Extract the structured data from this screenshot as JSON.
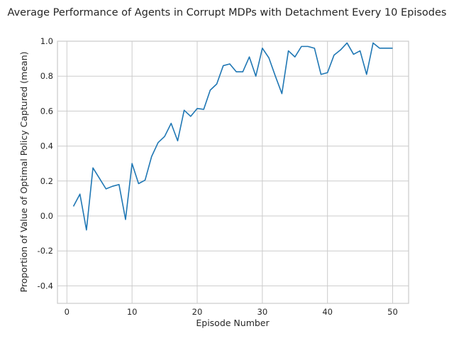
{
  "chart_data": {
    "type": "line",
    "title": "Average Performance of Agents in Corrupt MDPs with Detachment Every 10 Episodes",
    "xlabel": "Episode Number",
    "ylabel": "Proportion of Value of Optimal Policy Captured (mean)",
    "xlim": [
      -1.45,
      52.45
    ],
    "ylim": [
      -0.5,
      1.0
    ],
    "xticks": [
      0,
      10,
      20,
      30,
      40,
      50
    ],
    "xtick_labels": [
      "0",
      "10",
      "20",
      "30",
      "40",
      "50"
    ],
    "yticks": [
      -0.4,
      -0.2,
      0.0,
      0.2,
      0.4,
      0.6,
      0.8,
      1.0
    ],
    "ytick_labels": [
      "-0.4",
      "-0.2",
      "0.0",
      "0.2",
      "0.4",
      "0.6",
      "0.8",
      "1.0"
    ],
    "grid": true,
    "line_color": "#1f77b4",
    "series": [
      {
        "x": [
          1,
          2,
          3,
          4,
          5,
          6,
          7,
          8,
          9,
          10,
          11,
          12,
          13,
          14,
          15,
          16,
          17,
          18,
          19,
          20,
          21,
          22,
          23,
          24,
          25,
          26,
          27,
          28,
          29,
          30,
          31,
          32,
          33,
          34,
          35,
          36,
          37,
          38,
          39,
          40,
          41,
          42,
          43,
          44,
          45,
          46,
          47,
          48,
          49,
          50
        ],
        "values": [
          0.055,
          0.125,
          -0.08,
          0.275,
          0.215,
          0.155,
          0.17,
          0.18,
          -0.02,
          0.3,
          0.185,
          0.205,
          0.34,
          0.42,
          0.455,
          0.53,
          0.43,
          0.605,
          0.57,
          0.615,
          0.61,
          0.72,
          0.755,
          0.86,
          0.87,
          0.825,
          0.825,
          0.91,
          0.8,
          0.96,
          0.905,
          0.8,
          0.7,
          0.945,
          0.91,
          0.97,
          0.97,
          0.96,
          0.81,
          0.82,
          0.92,
          0.95,
          0.99,
          0.925,
          0.945,
          0.81,
          0.99,
          0.96,
          0.96,
          0.96
        ]
      }
    ]
  }
}
